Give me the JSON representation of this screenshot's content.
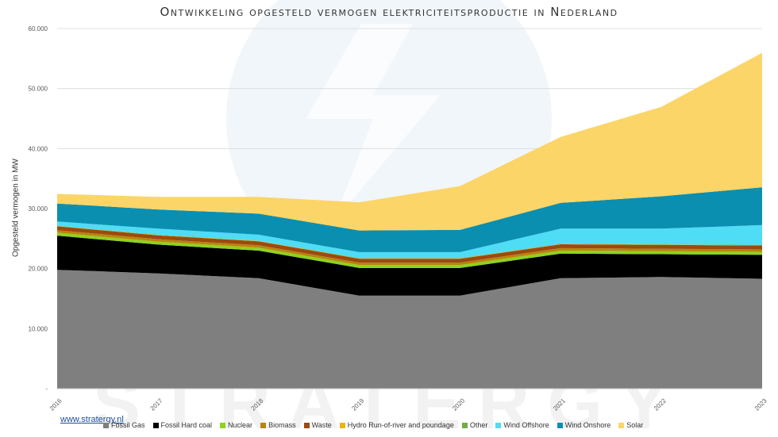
{
  "source_link": "www.stratergy.nl",
  "watermark": "STRATERGY",
  "chart_data": {
    "type": "area",
    "stacked": true,
    "title": "Ontwikkeling opgesteld vermogen elektriciteitsproductie in Nederland",
    "xlabel": "",
    "ylabel": "Opgesteld vermogen in MW",
    "categories": [
      "2016",
      "2017",
      "2018",
      "2019",
      "2020",
      "2021",
      "2022",
      "2023"
    ],
    "ylim": [
      0,
      60000
    ],
    "ytick_values": [
      0,
      10000,
      20000,
      30000,
      40000,
      50000,
      60000
    ],
    "ytick_labels": [
      "-",
      "10.000",
      "20.000",
      "30.000",
      "40.000",
      "50.000",
      "60.000"
    ],
    "grid": true,
    "legend_position": "bottom",
    "series": [
      {
        "name": "Fossil Gas",
        "color": "#7f7f7f",
        "values": [
          19800,
          19200,
          18400,
          15500,
          15500,
          18400,
          18600,
          18300
        ]
      },
      {
        "name": "Fossil Hard coal",
        "color": "#000000",
        "values": [
          5700,
          4800,
          4600,
          4600,
          4600,
          4100,
          3800,
          4000
        ]
      },
      {
        "name": "Nuclear",
        "color": "#8fd11f",
        "values": [
          500,
          500,
          500,
          500,
          500,
          500,
          500,
          500
        ]
      },
      {
        "name": "Biomass",
        "color": "#b8860b",
        "values": [
          400,
          400,
          400,
          400,
          400,
          400,
          400,
          400
        ]
      },
      {
        "name": "Waste",
        "color": "#9c4a0f",
        "values": [
          650,
          650,
          650,
          650,
          650,
          650,
          650,
          650
        ]
      },
      {
        "name": "Hydro Run-of-river and poundage",
        "color": "#e6b800",
        "values": [
          40,
          40,
          40,
          40,
          40,
          40,
          40,
          40
        ]
      },
      {
        "name": "Other",
        "color": "#70ad47",
        "values": [
          60,
          60,
          60,
          60,
          60,
          60,
          60,
          60
        ]
      },
      {
        "name": "Wind Offshore",
        "color": "#4fdcf5",
        "values": [
          700,
          1000,
          1000,
          1000,
          1000,
          2500,
          2600,
          3300
        ]
      },
      {
        "name": "Wind Onshore",
        "color": "#0a8fb0",
        "values": [
          3000,
          3200,
          3500,
          3600,
          3700,
          4300,
          5400,
          6300
        ]
      },
      {
        "name": "Solar",
        "color": "#fbd567",
        "values": [
          1600,
          2100,
          2800,
          4700,
          7300,
          11000,
          14900,
          22400
        ]
      }
    ]
  }
}
